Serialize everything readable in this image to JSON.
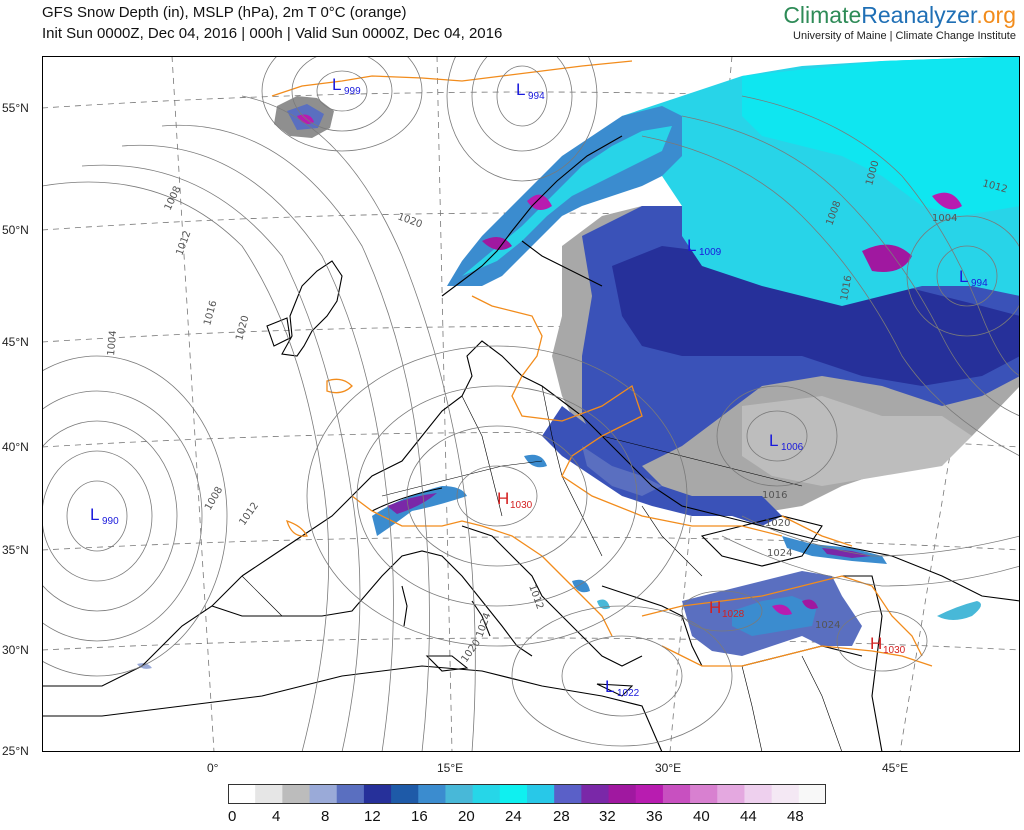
{
  "header": {
    "line1": "GFS Snow Depth (in), MSLP (hPa), 2m T 0°C (orange)",
    "line2": "Init Sun 0000Z, Dec 04, 2016 | 000h | Valid Sun 0000Z, Dec 04, 2016"
  },
  "brand": {
    "name_part1": "Climate",
    "name_part2": "Reanalyzer",
    "name_part3": ".org",
    "subtitle": "University of Maine | Climate Change Institute",
    "colors": {
      "part1": "#2e8b57",
      "part2": "#1f6fb5",
      "part3": "#f28c1c"
    }
  },
  "axes": {
    "lat_labels": [
      "55°N",
      "50°N",
      "45°N",
      "40°N",
      "35°N",
      "30°N",
      "25°N"
    ],
    "lon_labels": [
      "0°",
      "15°E",
      "30°E",
      "45°E"
    ]
  },
  "pressure_centers": [
    {
      "type": "L",
      "value": "999"
    },
    {
      "type": "L",
      "value": "994"
    },
    {
      "type": "L",
      "value": "990"
    },
    {
      "type": "L",
      "value": "1009"
    },
    {
      "type": "L",
      "value": "994"
    },
    {
      "type": "L",
      "value": "1006"
    },
    {
      "type": "L",
      "value": "1022"
    },
    {
      "type": "H",
      "value": "1030"
    },
    {
      "type": "H",
      "value": "1028"
    },
    {
      "type": "H",
      "value": "1030"
    }
  ],
  "isobar_labels": [
    "1008",
    "1012",
    "1016",
    "1020",
    "1004",
    "1008",
    "1012",
    "1020",
    "1024",
    "1016",
    "1020",
    "1024",
    "1008",
    "1012",
    "1016",
    "1004",
    "1000",
    "1012",
    "1020",
    "1024"
  ],
  "colorbar": {
    "ticks": [
      "0",
      "4",
      "8",
      "12",
      "16",
      "20",
      "24",
      "28",
      "32",
      "36",
      "40",
      "44",
      "48"
    ],
    "colors": [
      "#ffffff",
      "#e6e6e6",
      "#bcbcbc",
      "#9aaad8",
      "#5a6fc0",
      "#26309a",
      "#1e5aa8",
      "#3b8ccf",
      "#48b8d8",
      "#26d6e8",
      "#0ff0f0",
      "#28c8e8",
      "#5a60c8",
      "#7a28a8",
      "#a018a0",
      "#b81cb0",
      "#c850c0",
      "#d880d0",
      "#e4a8e0",
      "#eed0ee",
      "#f4e8f4",
      "#f8f8f8"
    ]
  },
  "legend_colors": {
    "freezing_line": "#f28c1c",
    "isobar": "#666666",
    "coast": "#000000"
  }
}
